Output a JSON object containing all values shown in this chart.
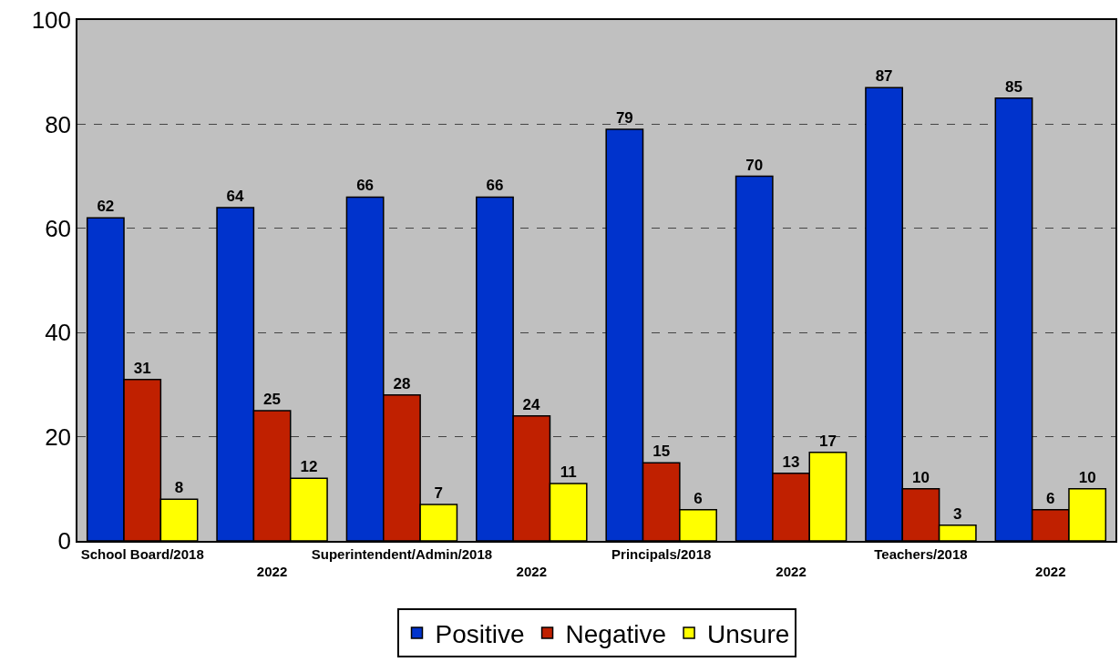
{
  "chart_data": {
    "type": "bar",
    "categories": [
      "School Board/2018",
      "2022",
      "Superintendent/Admin/2018",
      "2022",
      "Principals/2018",
      "2022",
      "Teachers/2018",
      "2022"
    ],
    "series": [
      {
        "name": "Positive",
        "color": "#0033cc",
        "values": [
          62,
          64,
          66,
          66,
          79,
          70,
          87,
          85
        ]
      },
      {
        "name": "Negative",
        "color": "#c02000",
        "values": [
          31,
          25,
          28,
          24,
          15,
          13,
          10,
          6
        ]
      },
      {
        "name": "Unsure",
        "color": "#ffff00",
        "values": [
          8,
          12,
          7,
          11,
          6,
          17,
          3,
          10
        ]
      }
    ],
    "ylim": [
      0,
      100
    ],
    "yticks": [
      0,
      20,
      40,
      60,
      80,
      100
    ],
    "grid": "y",
    "legend": "bottom",
    "data_labels": true
  }
}
